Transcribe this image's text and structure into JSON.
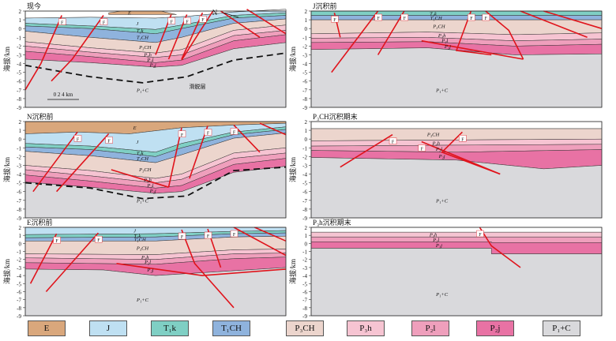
{
  "panels": [
    {
      "id": "p1",
      "title": "现今",
      "north": "N",
      "scale_label": "0 2 4 km",
      "detachment_label": "滑脱层",
      "labels": [
        "E",
        "J",
        "T₁k",
        "T₁CH",
        "P₃CH",
        "P₃h",
        "P₂l",
        "P₂j",
        "P₁+C"
      ]
    },
    {
      "id": "p2",
      "title": "J沉积前",
      "labels": [
        "T₁k",
        "T₁CH",
        "P₃CH",
        "P₃h",
        "P₂l",
        "P₂j",
        "P₁+C"
      ]
    },
    {
      "id": "p3",
      "title": "N沉积前",
      "labels": [
        "E",
        "J",
        "T₁k",
        "T₁CH",
        "P₃CH",
        "P₃h",
        "P₂l",
        "P₂j",
        "P₁+C"
      ]
    },
    {
      "id": "p4",
      "title": "P₃CH沉积期末",
      "labels": [
        "P₃CH",
        "P₃h",
        "P₂l",
        "P₂j",
        "P₁+C"
      ]
    },
    {
      "id": "p5",
      "title": "E沉积前",
      "labels": [
        "J",
        "T₁k",
        "T₁CH",
        "P₃CH",
        "P₃h",
        "P₂l",
        "P₂j",
        "P₁+C"
      ]
    },
    {
      "id": "p6",
      "title": "P₃h沉积期末",
      "labels": [
        "P₃h",
        "P₂l",
        "P₂j",
        "P₁+C"
      ]
    }
  ],
  "axis": {
    "ylabel": "海拔/km",
    "ticks": [
      "2",
      "1",
      "0",
      "-1",
      "-2",
      "-3",
      "-4",
      "-5",
      "-6",
      "-7",
      "-8",
      "-9"
    ]
  },
  "fault_label": "F",
  "legend": [
    {
      "name": "E",
      "color": "#d9a77c"
    },
    {
      "name": "J",
      "color": "#bfe0f2"
    },
    {
      "name": "T₁k",
      "color": "#7fcfc4"
    },
    {
      "name": "T₁CH",
      "color": "#8fb3dd"
    },
    {
      "name": "P₃CH",
      "color": "#ecd5cd"
    },
    {
      "name": "P₃h",
      "color": "#f6c4d2"
    },
    {
      "name": "P₂l",
      "color": "#ef9fbc"
    },
    {
      "name": "P₂j",
      "color": "#e872a4"
    },
    {
      "name": "P₁+C",
      "color": "#d9d9dc"
    }
  ]
}
